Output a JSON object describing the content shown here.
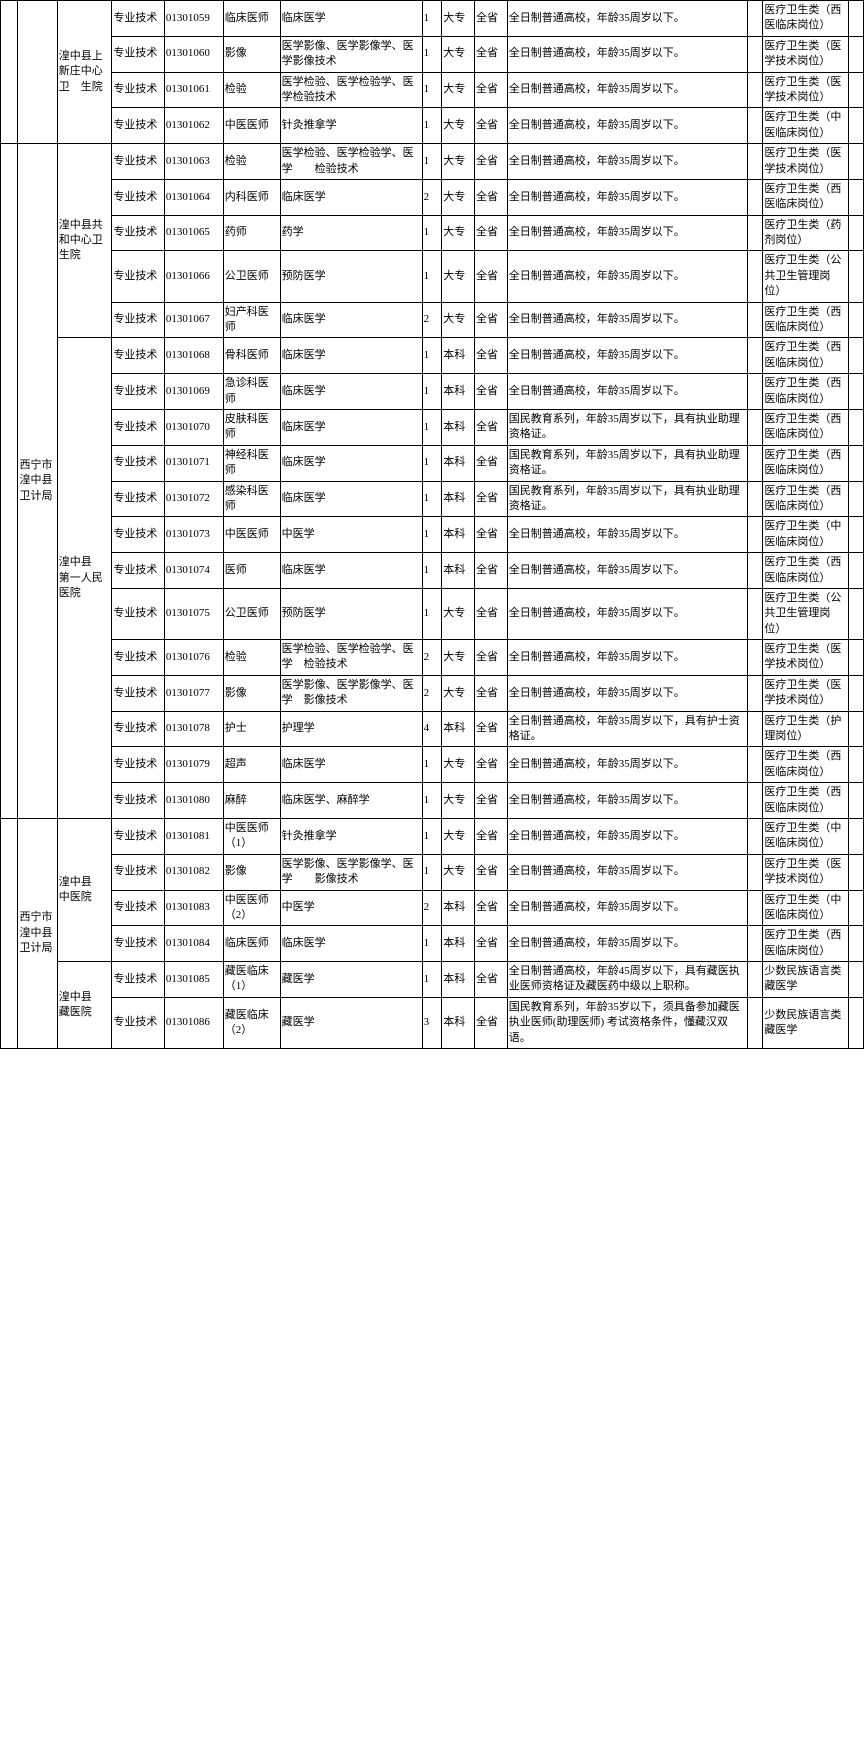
{
  "txt": {
    "dept1": "西宁市湟中县卫计局",
    "dept2": "西宁市湟中县卫计局",
    "unit1": "湟中县上新庄中心卫　生院",
    "unit2": "湟中县共和中心卫生院",
    "unit3": "湟中县　　　　第一人民医院",
    "unit4": "湟中县　　中医院",
    "unit5": "湟中县　　藏医院",
    "pt": "专业技术",
    "dz": "大专",
    "bk": "本科",
    "qs": "全省",
    "req_std": "全日制普通高校，年龄35周岁以下。",
    "req_gm": "国民教育系列，年龄35周岁以下，具有执业助理资格证。",
    "req_nurse": "全日制普通高校，年龄35周岁以下，具有护士资格证。",
    "req_tib1": "全日制普通高校，年龄45周岁以下，具有藏医执业医师资格证及藏医药中级以上职称。",
    "req_tib2": "国民教育系列，年龄35岁以下，须具备参加藏医执业医师(助理医师)  考试资格条件，懂藏汉双语。",
    "cat_xy": "医疗卫生类（西医临床岗位）",
    "cat_js": "医疗卫生类（医学技术岗位）",
    "cat_zy": "医疗卫生类（中医临床岗位）",
    "cat_yj": "医疗卫生类（药剂岗位）",
    "cat_gw": "医疗卫生类（公共卫生管理岗位）",
    "cat_hl": "医疗卫生类（护理岗位）",
    "cat_tib": "少数民族语言类　藏医学",
    "r59_code": "01301059",
    "r59_pos": "临床医师",
    "r59_maj": "临床医学",
    "r59_n": "1",
    "r60_code": "01301060",
    "r60_pos": "影像",
    "r60_maj": "医学影像、医学影像学、医学影像技术",
    "r60_n": "1",
    "r61_code": "01301061",
    "r61_pos": "检验",
    "r61_maj": "医学检验、医学检验学、医学检验技术",
    "r61_n": "1",
    "r62_code": "01301062",
    "r62_pos": "中医医师",
    "r62_maj": "针灸推拿学",
    "r62_n": "1",
    "r63_code": "01301063",
    "r63_pos": "检验",
    "r63_maj": "医学检验、医学检验学、医学　　检验技术",
    "r63_n": "1",
    "r64_code": "01301064",
    "r64_pos": "内科医师",
    "r64_maj": "临床医学",
    "r64_n": "2",
    "r65_code": "01301065",
    "r65_pos": "药师",
    "r65_maj": "药学",
    "r65_n": "1",
    "r66_code": "01301066",
    "r66_pos": "公卫医师",
    "r66_maj": "预防医学",
    "r66_n": "1",
    "r67_code": "01301067",
    "r67_pos": "妇产科医师",
    "r67_maj": "临床医学",
    "r67_n": "2",
    "r68_code": "01301068",
    "r68_pos": "骨科医师",
    "r68_maj": "临床医学",
    "r68_n": "1",
    "r69_code": "01301069",
    "r69_pos": "急诊科医师",
    "r69_maj": "临床医学",
    "r69_n": "1",
    "r70_code": "01301070",
    "r70_pos": "皮肤科医师",
    "r70_maj": "临床医学",
    "r70_n": "1",
    "r71_code": "01301071",
    "r71_pos": "神经科医师",
    "r71_maj": "临床医学",
    "r71_n": "1",
    "r72_code": "01301072",
    "r72_pos": "感染科医师",
    "r72_maj": "临床医学",
    "r72_n": "1",
    "r73_code": "01301073",
    "r73_pos": "中医医师",
    "r73_maj": "中医学",
    "r73_n": "1",
    "r74_code": "01301074",
    "r74_pos": "医师",
    "r74_maj": "临床医学",
    "r74_n": "1",
    "r75_code": "01301075",
    "r75_pos": "公卫医师",
    "r75_maj": "预防医学",
    "r75_n": "1",
    "r76_code": "01301076",
    "r76_pos": "检验",
    "r76_maj": "医学检验、医学检验学、医学　检验技术",
    "r76_n": "2",
    "r77_code": "01301077",
    "r77_pos": "影像",
    "r77_maj": "医学影像、医学影像学、医学　影像技术",
    "r77_n": "2",
    "r78_code": "01301078",
    "r78_pos": "护士",
    "r78_maj": "护理学",
    "r78_n": "4",
    "r79_code": "01301079",
    "r79_pos": "超声",
    "r79_maj": "临床医学",
    "r79_n": "1",
    "r80_code": "01301080",
    "r80_pos": "麻醉",
    "r80_maj": "临床医学、麻醉学",
    "r80_n": "1",
    "r81_code": "01301081",
    "r81_pos": "中医医师（1）",
    "r81_maj": "针灸推拿学",
    "r81_n": "1",
    "r82_code": "01301082",
    "r82_pos": "影像",
    "r82_maj": "医学影像、医学影像学、医学　　影像技术",
    "r82_n": "1",
    "r83_code": "01301083",
    "r83_pos": "中医医师（2）",
    "r83_maj": "中医学",
    "r83_n": "2",
    "r84_code": "01301084",
    "r84_pos": "临床医师",
    "r84_maj": "临床医学",
    "r84_n": "1",
    "r85_code": "01301085",
    "r85_pos": "藏医临床（1）",
    "r85_maj": "藏医学",
    "r85_n": "1",
    "r86_code": "01301086",
    "r86_pos": "藏医临床（2）",
    "r86_maj": "藏医学",
    "r86_n": "3"
  }
}
